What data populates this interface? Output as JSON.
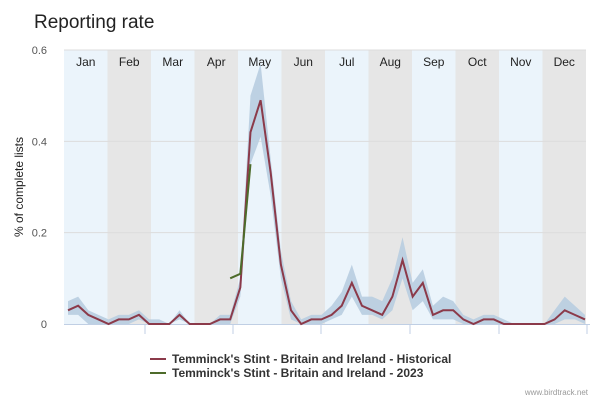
{
  "chart_data": {
    "type": "line",
    "title": "Reporting rate",
    "ylabel": "% of complete lists",
    "xlabel": "",
    "ylim": [
      0,
      0.6
    ],
    "yticks": [
      "0",
      "0.2",
      "0.4",
      "0.6"
    ],
    "grid": true,
    "months": [
      "Jan",
      "Feb",
      "Mar",
      "Apr",
      "May",
      "Jun",
      "Jul",
      "Aug",
      "Sep",
      "Oct",
      "Nov",
      "Dec"
    ],
    "legend_position": "bottom",
    "series": [
      {
        "name": "Temminck's Stint - Britain and Ireland - Historical",
        "color": "#8b3a4a",
        "values": [
          0.03,
          0.04,
          0.02,
          0.01,
          0,
          0.01,
          0.01,
          0.02,
          0,
          0,
          0,
          0.02,
          0,
          0,
          0,
          0.01,
          0.01,
          0.08,
          0.42,
          0.49,
          0.33,
          0.13,
          0.03,
          0,
          0.01,
          0.01,
          0.02,
          0.04,
          0.09,
          0.04,
          0.03,
          0.02,
          0.06,
          0.14,
          0.06,
          0.09,
          0.02,
          0.03,
          0.03,
          0.01,
          0,
          0.01,
          0.01,
          0,
          0,
          0,
          0,
          0,
          0.01,
          0.03,
          0.02,
          0.01
        ],
        "band_upper": [
          0.05,
          0.06,
          0.03,
          0.02,
          0.01,
          0.02,
          0.02,
          0.03,
          0.01,
          0.01,
          0,
          0.03,
          0,
          0,
          0,
          0.02,
          0.02,
          0.1,
          0.5,
          0.57,
          0.36,
          0.16,
          0.05,
          0.01,
          0.02,
          0.02,
          0.04,
          0.07,
          0.13,
          0.06,
          0.06,
          0.05,
          0.1,
          0.19,
          0.09,
          0.12,
          0.04,
          0.06,
          0.05,
          0.02,
          0.01,
          0.02,
          0.02,
          0.01,
          0,
          0,
          0,
          0,
          0.03,
          0.06,
          0.04,
          0.02
        ],
        "band_lower": [
          0.02,
          0.02,
          0,
          0,
          0,
          0,
          0,
          0.01,
          0,
          0,
          0,
          0.01,
          0,
          0,
          0,
          0,
          0,
          0.06,
          0.35,
          0.41,
          0.28,
          0.1,
          0.01,
          0,
          0,
          0,
          0.01,
          0.02,
          0.06,
          0.02,
          0.02,
          0.01,
          0.03,
          0.1,
          0.03,
          0.05,
          0.01,
          0.01,
          0.01,
          0,
          0,
          0,
          0,
          0,
          0,
          0,
          0,
          0,
          0,
          0.01,
          0.01,
          0
        ]
      },
      {
        "name": "Temminck's Stint - Britain and Ireland - 2023",
        "color": "#4d6b2a",
        "start_index": 16,
        "values": [
          0.1,
          0.11,
          0.35
        ]
      }
    ],
    "band_color": "#b8cde0",
    "month_band_colors": [
      "#ebf4fb",
      "#e6e6e6"
    ]
  },
  "credit": "www.birdtrack.net"
}
